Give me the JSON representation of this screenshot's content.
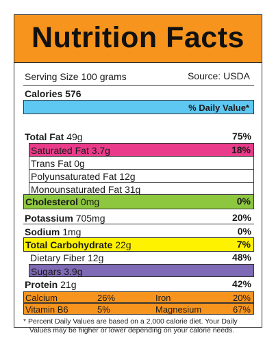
{
  "title": "Nutrition Facts",
  "serving": {
    "size": "Serving Size 100 grams",
    "source": "Source: USDA"
  },
  "calories": "Calories 576",
  "dv_header": "% Daily Value*",
  "nutrients": {
    "total_fat": {
      "label": "Total Fat",
      "amount": "49g",
      "pct": "75%"
    },
    "saturated_fat": {
      "text": "Saturated Fat 3.7g",
      "pct": "18%"
    },
    "trans_fat": {
      "text": "Trans Fat 0g"
    },
    "poly_fat": {
      "text": "Polyunsaturated Fat 12g"
    },
    "mono_fat": {
      "text": "Monounsaturated Fat 31g"
    },
    "cholesterol": {
      "label": "Cholesterol",
      "amount": "0mg",
      "pct": "0%"
    },
    "potassium": {
      "label": "Potassium",
      "amount": "705mg",
      "pct": "20%"
    },
    "sodium": {
      "label": "Sodium",
      "amount": "1mg",
      "pct": "0%"
    },
    "carbohydrate": {
      "label": "Total Carbohydrate",
      "amount": "22g",
      "pct": "7%"
    },
    "fiber": {
      "text": "Dietary Fiber 12g",
      "pct": "48%"
    },
    "sugars": {
      "text": "Sugars 3.9g"
    },
    "protein": {
      "label": "Protein",
      "amount": "21g",
      "pct": "42%"
    }
  },
  "minerals": {
    "row1": {
      "a_name": "Calcium",
      "a_pct": "26%",
      "b_name": "Iron",
      "b_pct": "20%"
    },
    "row2": {
      "a_name": "Vitamin B6",
      "a_pct": "5%",
      "b_name": "Magnesium",
      "b_pct": "67%"
    }
  },
  "footnote": {
    "line1": "* Percent Daily Values are based on a 2,000 calorie diet. Your Daily",
    "line2": "Values may be higher or lower depending on your calorie needs."
  },
  "colors": {
    "title_band": "#f7941d",
    "dv_header": "#5ec8f3",
    "saturated_fat": "#ea3b8b",
    "cholesterol": "#8dc63f",
    "carbohydrate": "#fff200",
    "sugars": "#7f6ab5",
    "minerals": "#f7941d"
  }
}
